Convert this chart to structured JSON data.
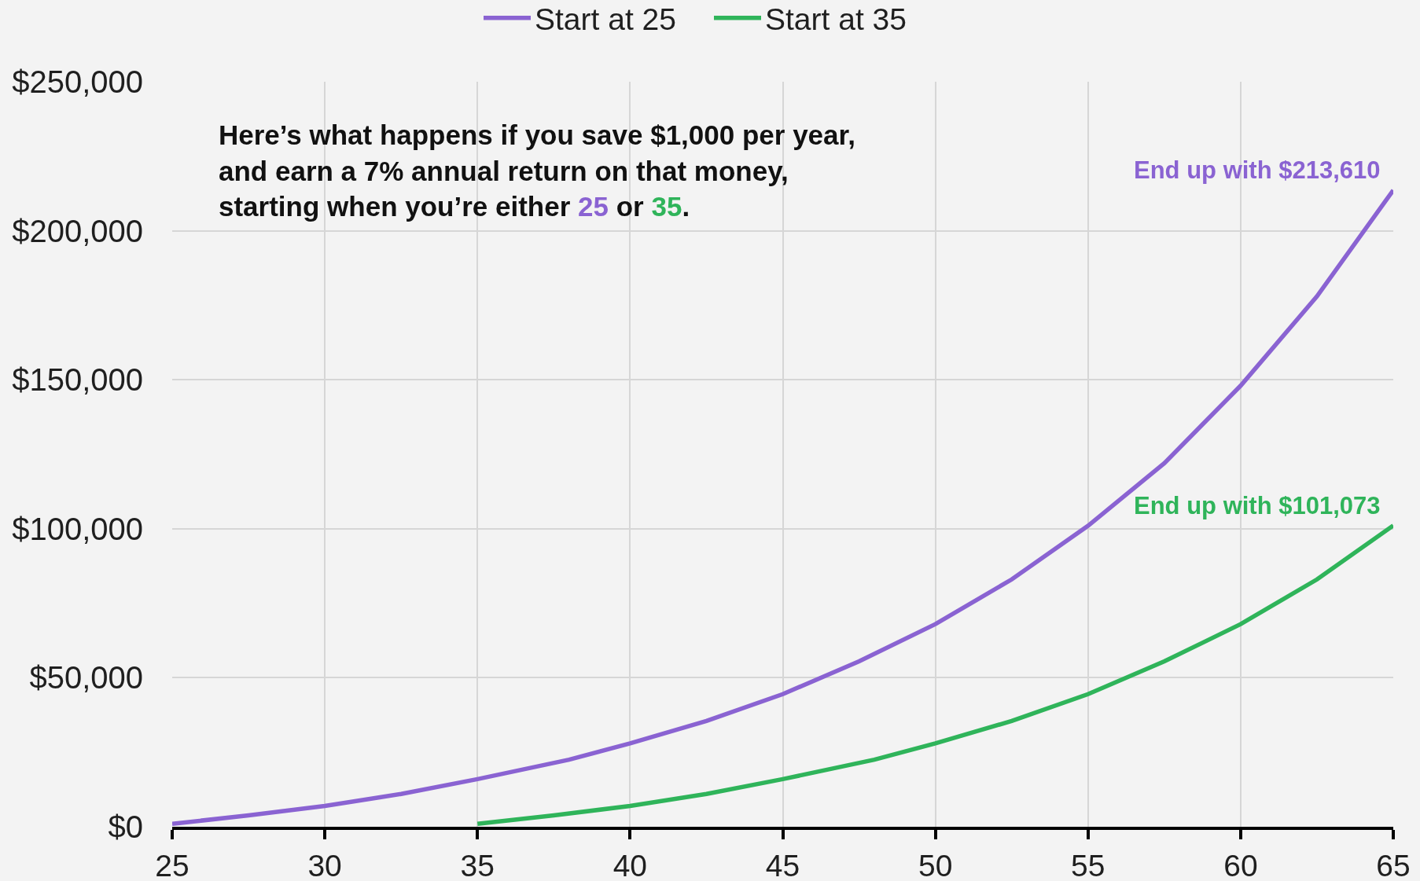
{
  "chart_data": {
    "type": "line",
    "series": [
      {
        "name": "Start at 25",
        "color": "#8a63d2",
        "x": [
          25,
          27.5,
          30,
          32.5,
          35,
          38,
          40,
          42.5,
          45,
          47.5,
          50,
          52.5,
          55,
          57.5,
          60,
          62.5,
          65
        ],
        "values": [
          1000,
          3800,
          7000,
          11000,
          16000,
          22500,
          28000,
          35500,
          44500,
          55500,
          68000,
          83000,
          101000,
          122000,
          148000,
          178000,
          213610
        ]
      },
      {
        "name": "Start at 35",
        "color": "#2fb45a",
        "x": [
          35,
          37.5,
          40,
          42.5,
          45,
          48,
          50,
          52.5,
          55,
          57.5,
          60,
          62.5,
          65
        ],
        "values": [
          1000,
          3800,
          7000,
          11000,
          16000,
          22500,
          28000,
          35500,
          44500,
          55500,
          68000,
          83000,
          101073
        ]
      }
    ],
    "xlim": [
      25,
      65
    ],
    "xticks": [
      25,
      30,
      35,
      40,
      45,
      50,
      55,
      60,
      65
    ],
    "ylim": [
      0,
      250000
    ],
    "yticks": [
      {
        "value": 0,
        "label": "$0"
      },
      {
        "value": 50000,
        "label": "$50,000"
      },
      {
        "value": 100000,
        "label": "$100,000"
      },
      {
        "value": 150000,
        "label": "$150,000"
      },
      {
        "value": 200000,
        "label": "$200,000"
      },
      {
        "value": 250000,
        "label": "$250,000"
      }
    ],
    "annotations": [
      "Here’s what happens if you save $1,000 per year,\nand earn a 7% annual return on that money,\nstarting when you’re either 25 or 35.",
      {
        "text": "End up with $213,610",
        "x": 65,
        "y": 213610
      },
      {
        "text": "End up with $101,073",
        "x": 65,
        "y": 101073
      }
    ],
    "grid": true,
    "legend": "top",
    "marker": "none",
    "line_style": "solid"
  }
}
